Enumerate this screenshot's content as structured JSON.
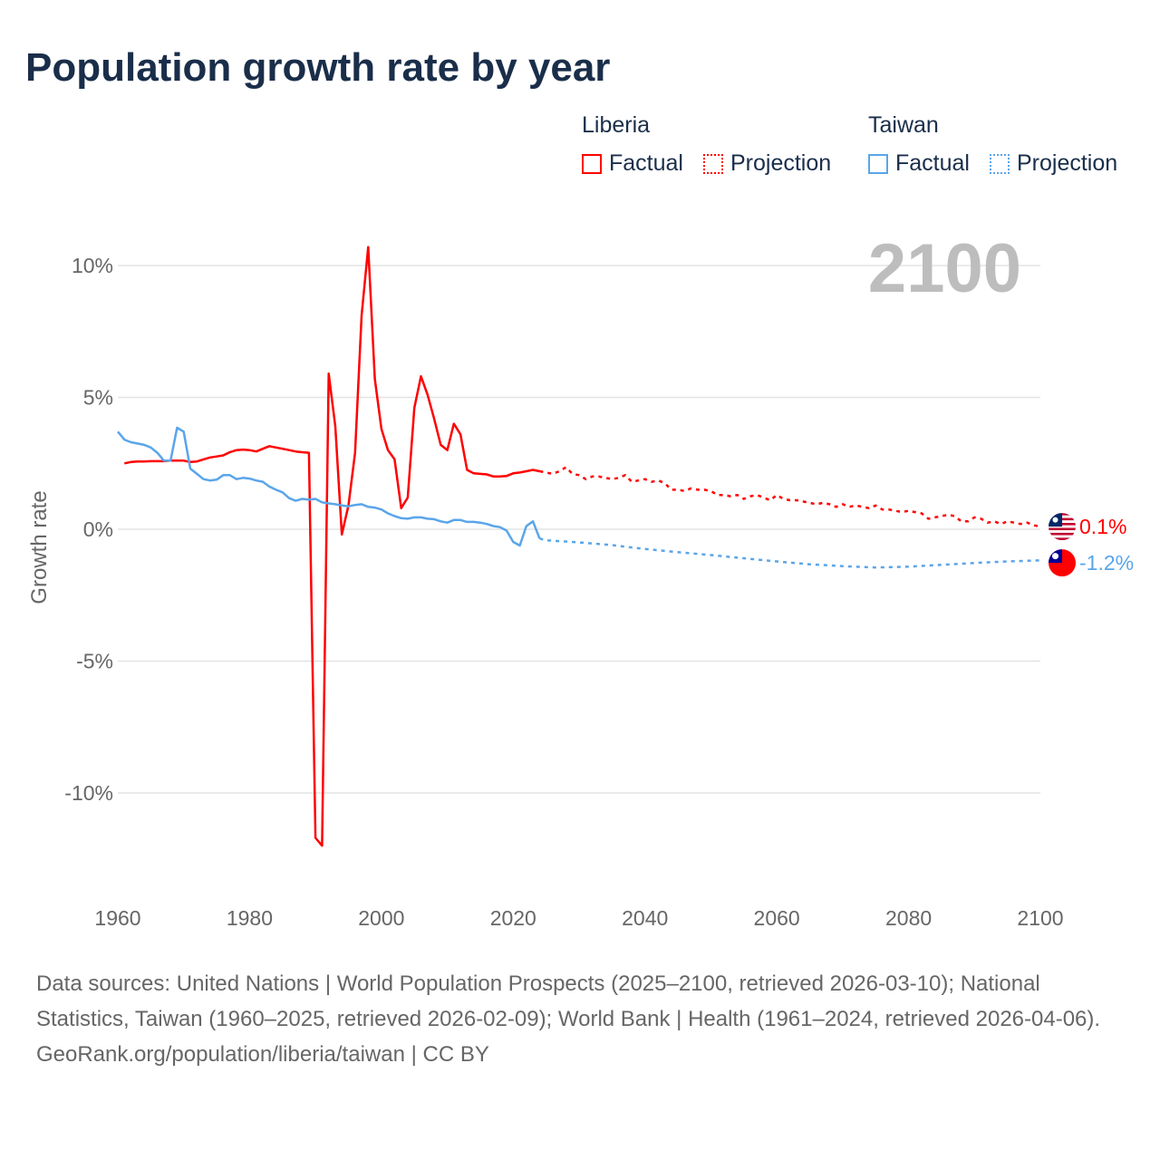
{
  "title": "Population growth rate by year",
  "legend": {
    "groups": [
      {
        "name": "Liberia",
        "factual": "Factual",
        "projection": "Projection",
        "color": "#ff0000"
      },
      {
        "name": "Taiwan",
        "factual": "Factual",
        "projection": "Projection",
        "color": "#5aa5ea"
      }
    ]
  },
  "year_label": "2100",
  "footer": {
    "sources": "Data sources: United Nations | World Population Prospects (2025–2100, retrieved 2026-03-10); National Statistics, Taiwan (1960–2025, retrieved 2026-02-09); World Bank | Health (1961–2024, retrieved 2026-04-06).",
    "credit": "GeoRank.org/population/liberia/taiwan | CC BY"
  },
  "chart_data": {
    "type": "line",
    "title": "Population growth rate by year",
    "xlabel": "",
    "ylabel": "Growth rate",
    "xlim": [
      1960,
      2100
    ],
    "ylim": [
      -12.5,
      10.8
    ],
    "x_ticks": [
      "1960",
      "1980",
      "2000",
      "2020",
      "2040",
      "2060",
      "2080",
      "2100"
    ],
    "x_tick_values": [
      1960,
      1980,
      2000,
      2020,
      2040,
      2060,
      2080,
      2100
    ],
    "y_ticks": [
      "10%",
      "5%",
      "0%",
      "-5%",
      "-10%"
    ],
    "y_tick_values": [
      10,
      5,
      0,
      -5,
      -10
    ],
    "grid": true,
    "series": [
      {
        "name": "Liberia Factual",
        "color": "#ff0000",
        "dashed": false,
        "x_start": 1961,
        "values": [
          2.5,
          2.55,
          2.57,
          2.57,
          2.58,
          2.58,
          2.58,
          2.6,
          2.6,
          2.6,
          2.55,
          2.57,
          2.65,
          2.72,
          2.76,
          2.8,
          2.92,
          3.0,
          3.02,
          3.0,
          2.95,
          3.05,
          3.15,
          3.1,
          3.05,
          3.0,
          2.95,
          2.92,
          2.9,
          -11.7,
          -12.0,
          5.9,
          3.9,
          -0.2,
          0.9,
          2.9,
          8.1,
          10.7,
          5.7,
          3.8,
          3.0,
          2.65,
          0.8,
          1.2,
          4.6,
          5.8,
          5.1,
          4.2,
          3.2,
          3.0,
          4.0,
          3.6,
          2.25,
          2.12,
          2.1,
          2.08,
          2.0,
          2.0,
          2.02,
          2.12,
          2.15,
          2.2,
          2.25,
          2.2
        ]
      },
      {
        "name": "Liberia Projection",
        "color": "#ff0000",
        "dashed": true,
        "x_start": 2024,
        "values": [
          2.2,
          2.15,
          2.1,
          2.2,
          2.35,
          2.1,
          2.05,
          1.9,
          2.0,
          2.0,
          1.95,
          1.9,
          1.95,
          2.05,
          1.8,
          1.85,
          1.9,
          1.8,
          1.85,
          1.75,
          1.5,
          1.5,
          1.45,
          1.55,
          1.5,
          1.5,
          1.45,
          1.3,
          1.3,
          1.25,
          1.3,
          1.15,
          1.25,
          1.3,
          1.2,
          1.1,
          1.3,
          1.15,
          1.1,
          1.1,
          1.05,
          1.0,
          0.95,
          1.0,
          0.95,
          0.85,
          0.95,
          0.85,
          0.9,
          0.85,
          0.8,
          0.9,
          0.75,
          0.75,
          0.7,
          0.65,
          0.7,
          0.65,
          0.6,
          0.4,
          0.45,
          0.5,
          0.55,
          0.5,
          0.3,
          0.3,
          0.45,
          0.4,
          0.25,
          0.3,
          0.2,
          0.3,
          0.25,
          0.2,
          0.25,
          0.15,
          0.1
        ]
      },
      {
        "name": "Taiwan Factual",
        "color": "#5aa5ea",
        "dashed": false,
        "x_start": 1960,
        "values": [
          3.7,
          3.4,
          3.3,
          3.25,
          3.2,
          3.1,
          2.9,
          2.6,
          2.6,
          3.85,
          3.7,
          2.3,
          2.1,
          1.9,
          1.85,
          1.88,
          2.05,
          2.05,
          1.9,
          1.95,
          1.92,
          1.85,
          1.8,
          1.62,
          1.5,
          1.4,
          1.18,
          1.08,
          1.15,
          1.12,
          1.15,
          1.02,
          0.98,
          0.95,
          0.9,
          0.87,
          0.92,
          0.95,
          0.85,
          0.82,
          0.75,
          0.6,
          0.5,
          0.42,
          0.4,
          0.45,
          0.45,
          0.4,
          0.38,
          0.3,
          0.25,
          0.35,
          0.35,
          0.28,
          0.28,
          0.25,
          0.2,
          0.12,
          0.08,
          -0.05,
          -0.48,
          -0.62,
          0.12,
          0.3,
          -0.35
        ]
      },
      {
        "name": "Taiwan Projection",
        "color": "#5aa5ea",
        "dashed": true,
        "x_start": 2024,
        "x_step": 5,
        "x": [
          2024,
          2025,
          2030,
          2035,
          2040,
          2045,
          2050,
          2055,
          2060,
          2065,
          2070,
          2075,
          2080,
          2085,
          2090,
          2095,
          2100
        ],
        "values": [
          -0.35,
          -0.42,
          -0.5,
          -0.6,
          -0.75,
          -0.87,
          -0.98,
          -1.1,
          -1.22,
          -1.33,
          -1.4,
          -1.45,
          -1.42,
          -1.35,
          -1.28,
          -1.22,
          -1.18
        ]
      }
    ],
    "end_labels": [
      {
        "country": "Liberia",
        "text": "0.1%",
        "value": 0.1,
        "color": "#ff0000"
      },
      {
        "country": "Taiwan",
        "text": "-1.2%",
        "value": -1.2,
        "color": "#5aa5ea"
      }
    ]
  }
}
